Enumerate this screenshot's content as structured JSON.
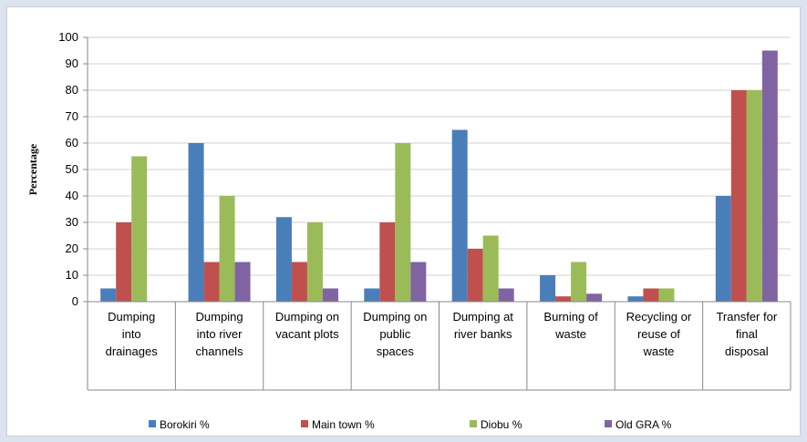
{
  "chart_data": {
    "type": "bar",
    "title": "",
    "xlabel": "",
    "ylabel": "Percentage",
    "ylim": [
      0,
      100
    ],
    "yticks": [
      0,
      10,
      20,
      30,
      40,
      50,
      60,
      70,
      80,
      90,
      100
    ],
    "grid": true,
    "legend_position": "bottom",
    "categories": [
      [
        "Dumping",
        "into",
        "drainages"
      ],
      [
        "Dumping",
        "into river",
        "channels"
      ],
      [
        "Dumping on",
        "vacant plots"
      ],
      [
        "Dumping on",
        "public",
        "spaces"
      ],
      [
        "Dumping at",
        "river banks"
      ],
      [
        "Burning of",
        "waste"
      ],
      [
        "Recycling or",
        "reuse of",
        "waste"
      ],
      [
        "Transfer for",
        "final",
        "disposal"
      ]
    ],
    "series": [
      {
        "name": "Borokiri %",
        "color": "#4a7ebb",
        "values": [
          5,
          60,
          32,
          5,
          65,
          10,
          2,
          40
        ]
      },
      {
        "name": "Main town  %",
        "color": "#c0504d",
        "values": [
          30,
          15,
          15,
          30,
          20,
          2,
          5,
          80
        ]
      },
      {
        "name": "Diobu %",
        "color": "#9bbb59",
        "values": [
          55,
          40,
          30,
          60,
          25,
          15,
          5,
          80
        ]
      },
      {
        "name": "Old GRA %",
        "color": "#8064a2",
        "values": [
          0,
          15,
          5,
          15,
          5,
          3,
          0,
          95
        ]
      }
    ]
  }
}
